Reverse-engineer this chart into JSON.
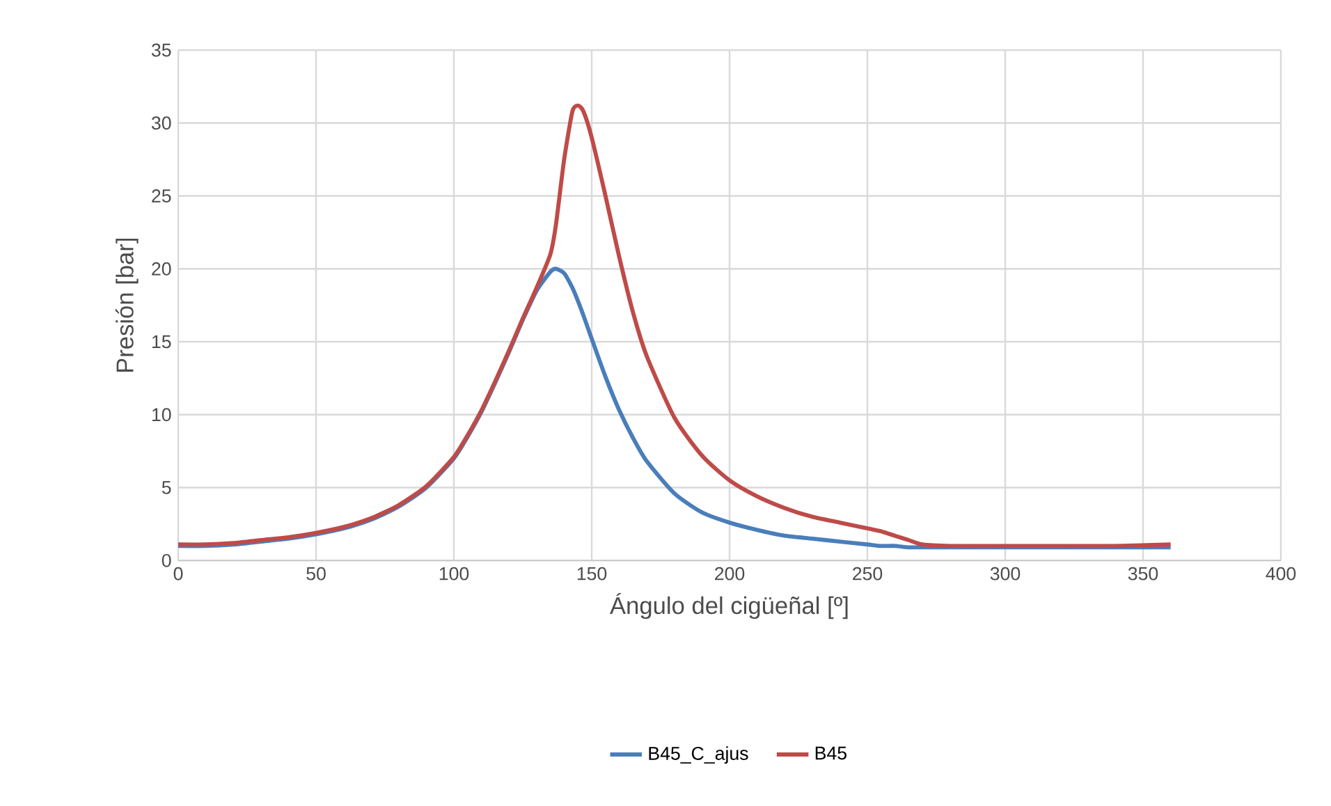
{
  "chart_data": {
    "type": "line",
    "xlabel": "Ángulo del cigüeñal [º]",
    "ylabel": "Presión [bar]",
    "x": [
      0,
      10,
      20,
      30,
      40,
      50,
      60,
      70,
      80,
      90,
      100,
      105,
      110,
      115,
      120,
      125,
      130,
      135,
      137,
      140,
      143,
      145,
      147,
      150,
      155,
      160,
      165,
      170,
      180,
      190,
      200,
      210,
      220,
      230,
      240,
      250,
      255,
      260,
      265,
      270,
      280,
      300,
      320,
      340,
      360
    ],
    "series": [
      {
        "name": "B45_C_ajus",
        "color": "#4a7ebb",
        "values": [
          1.0,
          1.0,
          1.1,
          1.3,
          1.5,
          1.8,
          2.2,
          2.8,
          3.7,
          5.0,
          7.0,
          8.5,
          10.2,
          12.2,
          14.3,
          16.5,
          18.5,
          19.8,
          20.0,
          19.7,
          18.7,
          17.8,
          16.8,
          15.2,
          12.6,
          10.3,
          8.4,
          6.8,
          4.6,
          3.3,
          2.6,
          2.1,
          1.7,
          1.5,
          1.3,
          1.1,
          1.0,
          1.0,
          0.9,
          0.9,
          0.9,
          0.9,
          0.9,
          0.9,
          0.9
        ]
      },
      {
        "name": "B45",
        "color": "#be4b48",
        "values": [
          1.1,
          1.1,
          1.2,
          1.4,
          1.6,
          1.9,
          2.3,
          2.9,
          3.8,
          5.1,
          7.1,
          8.6,
          10.3,
          12.3,
          14.4,
          16.6,
          18.7,
          21.0,
          23.0,
          27.5,
          30.8,
          31.2,
          30.8,
          29.0,
          25.0,
          20.8,
          17.0,
          14.0,
          9.8,
          7.2,
          5.5,
          4.4,
          3.6,
          3.0,
          2.6,
          2.2,
          2.0,
          1.7,
          1.4,
          1.1,
          1.0,
          1.0,
          1.0,
          1.0,
          1.1
        ]
      }
    ],
    "xlim": [
      0,
      400
    ],
    "xticks": [
      0,
      50,
      100,
      150,
      200,
      250,
      300,
      350,
      400
    ],
    "ylim": [
      0,
      35
    ],
    "yticks": [
      0,
      5,
      10,
      15,
      20,
      25,
      30,
      35
    ],
    "grid": true,
    "legend": "bottom",
    "line_style": "solid",
    "marker": "none"
  }
}
